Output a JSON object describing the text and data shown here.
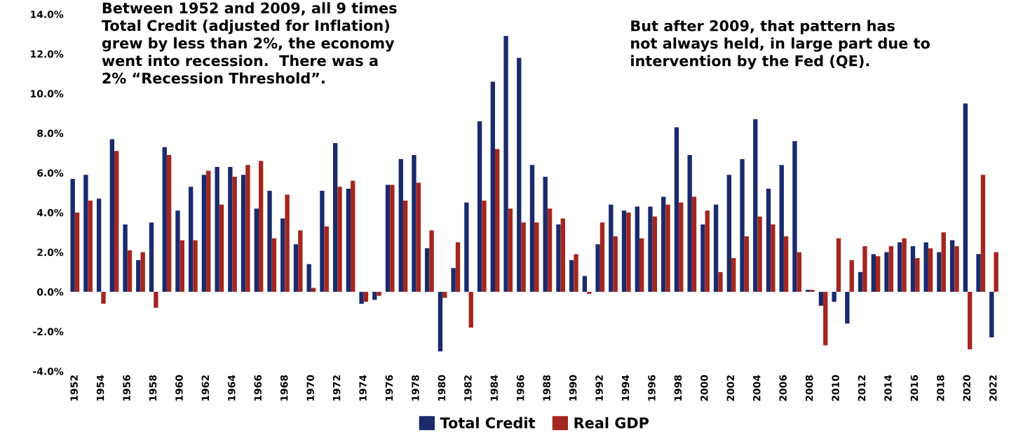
{
  "chart_data": {
    "type": "bar",
    "categories": [
      "1952",
      null,
      "1954",
      null,
      "1956",
      null,
      "1958",
      null,
      "1960",
      null,
      "1962",
      null,
      "1964",
      null,
      "1966",
      null,
      "1968",
      null,
      "1970",
      null,
      "1972",
      null,
      "1974",
      null,
      "1976",
      null,
      "1978",
      null,
      "1980",
      null,
      "1982",
      null,
      "1984",
      null,
      "1986",
      null,
      "1988",
      null,
      "1990",
      null,
      "1992",
      null,
      "1994",
      null,
      "1996",
      null,
      "1998",
      null,
      "2000",
      null,
      "2002",
      null,
      "2004",
      null,
      "2006",
      null,
      "2008",
      null,
      "2010",
      null,
      "2012",
      null,
      "2014",
      null,
      "2016",
      null,
      "2018",
      null,
      "2020",
      null,
      "2022"
    ],
    "series": [
      {
        "name": "Total Credit",
        "color": "#1b2a6b",
        "values": [
          5.7,
          5.9,
          4.7,
          7.7,
          3.4,
          1.6,
          3.5,
          7.3,
          4.1,
          5.3,
          5.9,
          6.3,
          6.3,
          5.9,
          4.2,
          5.1,
          3.7,
          2.4,
          1.4,
          5.1,
          7.5,
          5.2,
          -0.6,
          -0.4,
          5.4,
          6.7,
          6.9,
          2.2,
          -3.0,
          1.2,
          4.5,
          8.6,
          10.6,
          12.9,
          11.8,
          6.4,
          5.8,
          3.4,
          1.6,
          0.8,
          2.4,
          4.4,
          4.1,
          4.3,
          4.3,
          4.8,
          8.3,
          6.9,
          3.4,
          4.4,
          5.9,
          6.7,
          8.7,
          5.2,
          6.4,
          7.6,
          0.1,
          -0.7,
          -0.5,
          -1.6,
          1.0,
          1.9,
          2.0,
          2.5,
          2.3,
          2.5,
          2.0,
          2.6,
          9.5,
          1.9,
          -2.3
        ]
      },
      {
        "name": "Real GDP",
        "color": "#a3261f",
        "values": [
          4.0,
          4.6,
          -0.6,
          7.1,
          2.1,
          2.0,
          -0.8,
          6.9,
          2.6,
          2.6,
          6.1,
          4.4,
          5.8,
          6.4,
          6.6,
          2.7,
          4.9,
          3.1,
          0.2,
          3.3,
          5.3,
          5.6,
          -0.5,
          -0.2,
          5.4,
          4.6,
          5.5,
          3.1,
          -0.3,
          2.5,
          -1.8,
          4.6,
          7.2,
          4.2,
          3.5,
          3.5,
          4.2,
          3.7,
          1.9,
          -0.1,
          3.5,
          2.8,
          4.0,
          2.7,
          3.8,
          4.4,
          4.5,
          4.8,
          4.1,
          1.0,
          1.7,
          2.8,
          3.8,
          3.4,
          2.8,
          2.0,
          0.1,
          -2.7,
          2.7,
          1.6,
          2.3,
          1.8,
          2.3,
          2.7,
          1.7,
          2.2,
          3.0,
          2.3,
          -2.9,
          5.9,
          2.0
        ]
      }
    ],
    "ylim": [
      -4,
      14
    ],
    "yticks": [
      {
        "value": -4,
        "label": "-4.0%"
      },
      {
        "value": -2,
        "label": "-2.0%"
      },
      {
        "value": 0,
        "label": "0.0%"
      },
      {
        "value": 2,
        "label": "2.0%"
      },
      {
        "value": 4,
        "label": "4.0%"
      },
      {
        "value": 6,
        "label": "6.0%"
      },
      {
        "value": 8,
        "label": "8.0%"
      },
      {
        "value": 10,
        "label": "10.0%"
      },
      {
        "value": 12,
        "label": "12.0%"
      },
      {
        "value": 14,
        "label": "14.0%"
      }
    ],
    "grid": false,
    "legend": "bottom",
    "annotations": [
      "Between 1952 and 2009, all 9 times\nTotal Credit (adjusted for Inflation)\ngrew by less than 2%, the economy\nwent into recession.  There was a\n2% “Recession Threshold”.",
      "But after 2009, that pattern has\nnot always held, in large part due to\nintervention by the Fed (QE)."
    ]
  }
}
